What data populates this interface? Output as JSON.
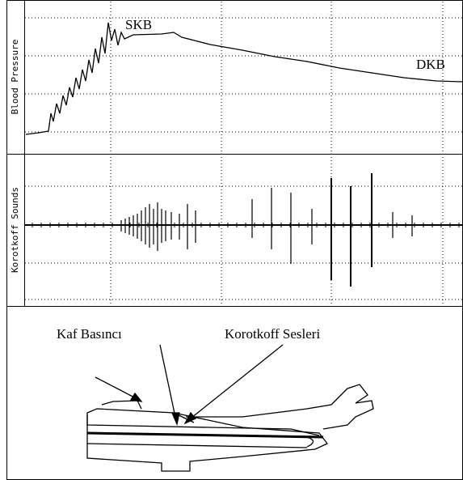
{
  "panels": {
    "blood_pressure": {
      "axis_label": "Blood Pressure",
      "systolic_label": "SKB",
      "diastolic_label": "DKB"
    },
    "korotkoff": {
      "axis_label": "Korotkoff Sounds"
    },
    "illustration": {
      "cuff_label": "Kaf Basıncı",
      "sounds_label": "Korotkoff Sesleri"
    }
  }
}
